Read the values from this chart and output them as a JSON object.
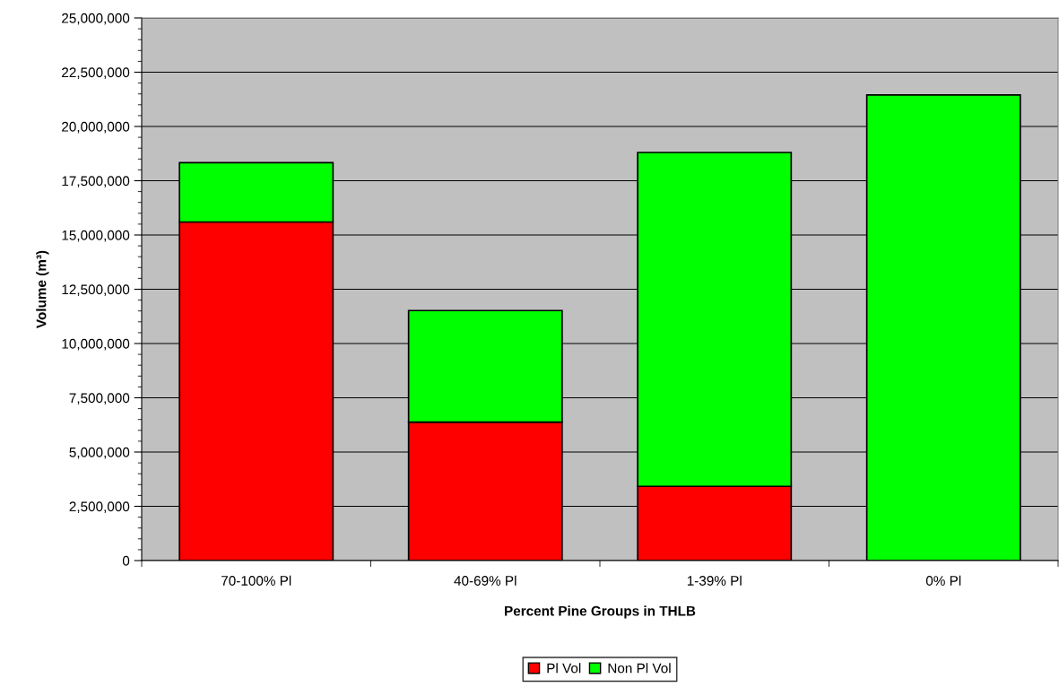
{
  "chart_data": {
    "type": "bar",
    "stacked": true,
    "xlabel": "Percent Pine Groups in THLB",
    "ylabel": "Volume (m³)",
    "categories": [
      "70-100% Pl",
      "40-69% Pl",
      "1-39% Pl",
      "0% Pl"
    ],
    "series": [
      {
        "name": "Pl Vol",
        "color": "#ff0000",
        "values": [
          15600000,
          6380000,
          3420000,
          0
        ]
      },
      {
        "name": "Non Pl Vol",
        "color": "#00ff00",
        "values": [
          2730000,
          5140000,
          15380000,
          21450000
        ]
      }
    ],
    "ylim": [
      0,
      25000000
    ],
    "yticks": [
      {
        "value": 0,
        "label": "0"
      },
      {
        "value": 2500000,
        "label": "2,500,000"
      },
      {
        "value": 5000000,
        "label": "5,000,000"
      },
      {
        "value": 7500000,
        "label": "7,500,000"
      },
      {
        "value": 10000000,
        "label": "10,000,000"
      },
      {
        "value": 12500000,
        "label": "12,500,000"
      },
      {
        "value": 15000000,
        "label": "15,000,000"
      },
      {
        "value": 17500000,
        "label": "17,500,000"
      },
      {
        "value": 20000000,
        "label": "20,000,000"
      },
      {
        "value": 22500000,
        "label": "22,500,000"
      },
      {
        "value": 25000000,
        "label": "25,000,000"
      }
    ],
    "grid": "y",
    "legend": "bottom"
  }
}
